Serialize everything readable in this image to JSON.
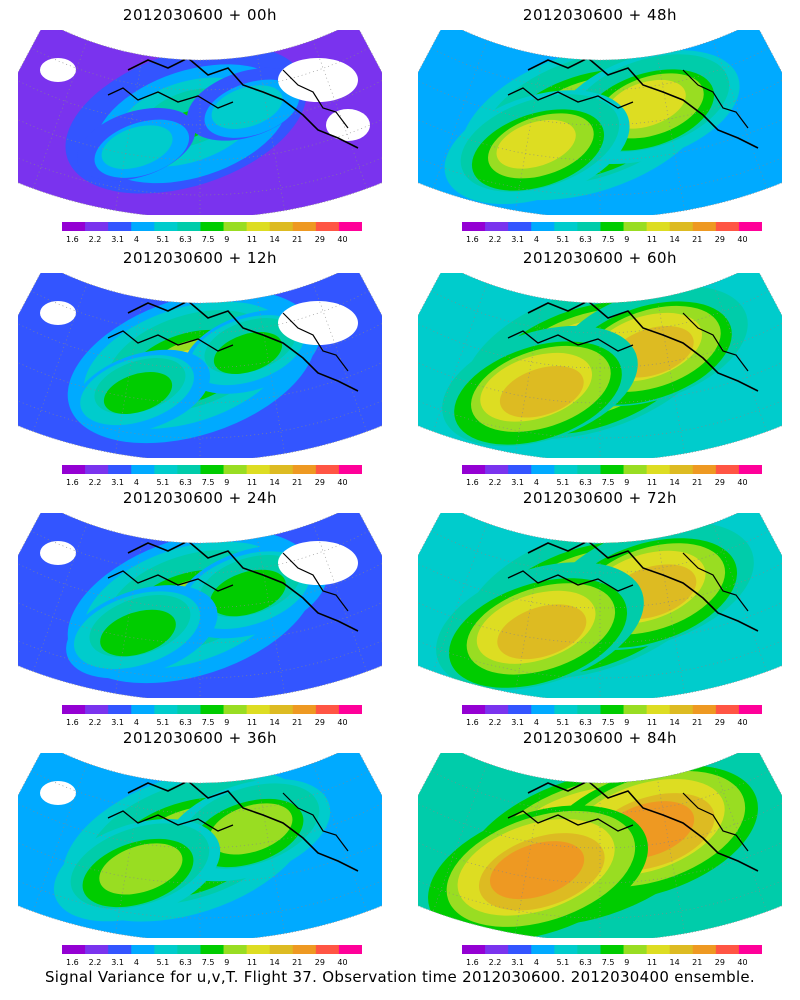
{
  "panels": [
    {
      "title": "2012030600 + 00h",
      "level": 0.15
    },
    {
      "title": "2012030600 + 48h",
      "level": 0.55
    },
    {
      "title": "2012030600 + 12h",
      "level": 0.25
    },
    {
      "title": "2012030600 + 60h",
      "level": 0.62
    },
    {
      "title": "2012030600 + 24h",
      "level": 0.35
    },
    {
      "title": "2012030600 + 72h",
      "level": 0.7
    },
    {
      "title": "2012030600 + 36h",
      "level": 0.45
    },
    {
      "title": "2012030600 + 84h",
      "level": 0.78
    }
  ],
  "colorbar": {
    "labels": [
      "1.6",
      "2.2",
      "3.1",
      "4",
      "5.1",
      "6.3",
      "7.5",
      "9",
      "11",
      "14",
      "21",
      "29",
      "40"
    ],
    "colors": [
      "#9400d3",
      "#7a33ee",
      "#3355ff",
      "#00aaff",
      "#00cccc",
      "#00ccaa",
      "#00cc00",
      "#99dd22",
      "#dddd22",
      "#ddbb22",
      "#ee9922",
      "#ff5544",
      "#ff0099"
    ]
  },
  "footer": "Signal Variance for u,v,T. Flight 37. Observation time 2012030600. 2012030400 ensemble."
}
